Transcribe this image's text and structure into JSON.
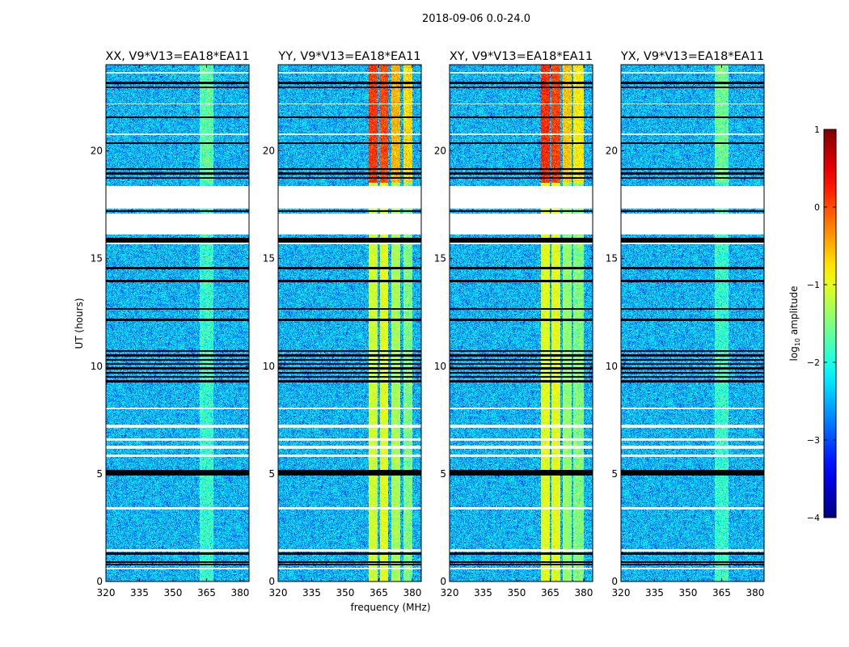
{
  "chart_data": {
    "type": "heatmap",
    "title": "2018-09-06 0.0-24.0",
    "xlabel": "frequency (MHz)",
    "ylabel": "UT (hours)",
    "xlim": [
      320,
      384
    ],
    "ylim": [
      0,
      24
    ],
    "xticks": [
      320,
      335,
      350,
      365,
      380
    ],
    "yticks": [
      0,
      5,
      10,
      15,
      20
    ],
    "colorbar": {
      "label": "log10 amplitude",
      "label_main": "log",
      "label_sub": "10",
      "label_rest": " amplitude",
      "range": [
        -4,
        1
      ],
      "ticks": [
        -4,
        -3,
        -2,
        -1,
        0,
        1
      ],
      "tick_labels": [
        "−4",
        "−3",
        "−2",
        "−1",
        "0",
        "1"
      ],
      "colormap": "jet"
    },
    "background_level": -2.5,
    "noise_sigma": 0.3,
    "blank_hours": [
      [
        17.3,
        18.35
      ],
      [
        16.1,
        17.1
      ],
      [
        15.65,
        15.75
      ],
      [
        8.0,
        8.08
      ],
      [
        7.15,
        7.3
      ],
      [
        6.55,
        6.65
      ],
      [
        6.15,
        6.3
      ],
      [
        5.8,
        5.9
      ],
      [
        3.35,
        3.45
      ],
      [
        1.4,
        1.5
      ],
      [
        0.55,
        0.65
      ],
      [
        23.6,
        23.65
      ],
      [
        22.15,
        22.2
      ],
      [
        20.75,
        20.8
      ]
    ],
    "flagged_hours": [
      23.15,
      22.95,
      21.55,
      20.35,
      19.15,
      18.95,
      18.75,
      17.2,
      15.9,
      15.8,
      14.55,
      13.95,
      12.65,
      12.15,
      10.7,
      10.5,
      10.3,
      10.1,
      9.9,
      9.7,
      9.5,
      9.3,
      5.15,
      5.05,
      4.95,
      1.3,
      0.9,
      0.8
    ],
    "panels": [
      {
        "title": "XX, V9*V13=EA18*EA11",
        "bands": [
          {
            "range": [
              362,
              368
            ],
            "level_low": -1.9,
            "level_high": -1.7
          }
        ]
      },
      {
        "title": "YY, V9*V13=EA18*EA11",
        "bands": [
          {
            "range": [
              360.5,
              364.5
            ],
            "level_low": -1.1,
            "level_high": 0.1
          },
          {
            "range": [
              365.5,
              369
            ],
            "level_low": -1.0,
            "level_high": 0.0
          },
          {
            "range": [
              370.5,
              374.5
            ],
            "level_low": -1.3,
            "level_high": -0.5
          },
          {
            "range": [
              376,
              380
            ],
            "level_low": -1.5,
            "level_high": -0.7
          }
        ]
      },
      {
        "title": "XY, V9*V13=EA18*EA11",
        "bands": [
          {
            "range": [
              361,
              365
            ],
            "level_low": -1.0,
            "level_high": 0.15
          },
          {
            "range": [
              365.5,
              369.5
            ],
            "level_low": -1.0,
            "level_high": 0.05
          },
          {
            "range": [
              370.5,
              374.5
            ],
            "level_low": -1.4,
            "level_high": -0.6
          },
          {
            "range": [
              375.5,
              380
            ],
            "level_low": -1.5,
            "level_high": -0.8
          }
        ]
      },
      {
        "title": "YX, V9*V13=EA18*EA11",
        "bands": [
          {
            "range": [
              362,
              368
            ],
            "level_low": -1.9,
            "level_high": -1.6
          }
        ]
      }
    ],
    "high_state_start_hour": 18.5
  }
}
